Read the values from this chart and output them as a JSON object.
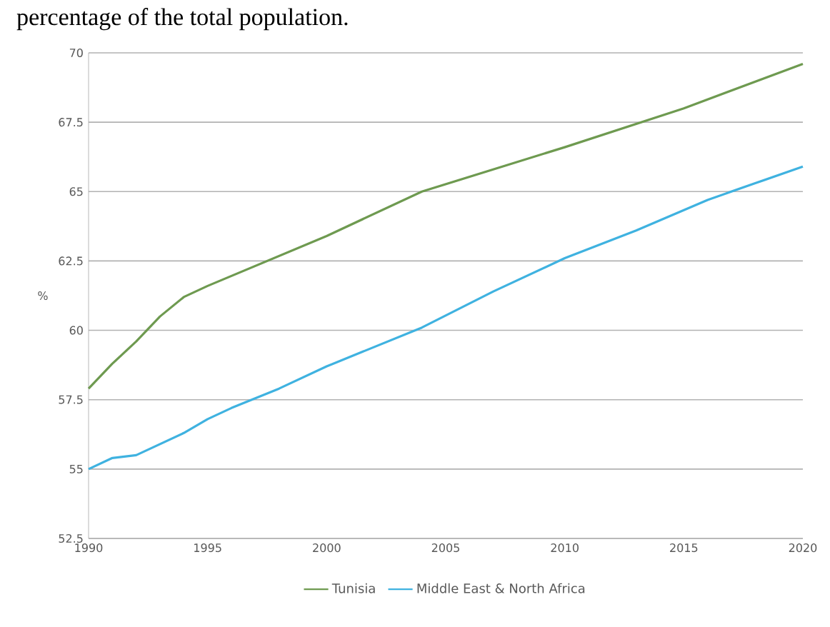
{
  "chart_data": {
    "type": "line",
    "title": "percentage of the total population.",
    "ylabel": "%",
    "xlim": [
      1990,
      2020
    ],
    "xticks": [
      1990,
      1995,
      2000,
      2005,
      2010,
      2015,
      2020
    ],
    "ylim": [
      52.5,
      70
    ],
    "yticks": [
      52.5,
      55,
      57.5,
      60,
      62.5,
      65,
      67.5,
      70
    ],
    "grid": "y",
    "legend": "bottom",
    "series": [
      {
        "name": "Tunisia",
        "color": "#6e9a50",
        "x": [
          1990,
          1991,
          1992,
          1993,
          1994,
          1995,
          2000,
          2004,
          2010,
          2015,
          2020
        ],
        "values": [
          57.9,
          58.8,
          59.6,
          60.5,
          61.2,
          61.6,
          63.4,
          65.0,
          66.6,
          68.0,
          69.6
        ]
      },
      {
        "name": "Middle East & North Africa",
        "color": "#3fb2e0",
        "x": [
          1990,
          1991,
          1992,
          1993,
          1994,
          1995,
          1996,
          1998,
          2000,
          2004,
          2007,
          2010,
          2013,
          2016,
          2018,
          2020
        ],
        "values": [
          55.0,
          55.4,
          55.5,
          55.9,
          56.3,
          56.8,
          57.2,
          57.9,
          58.7,
          60.1,
          61.4,
          62.6,
          63.6,
          64.7,
          65.3,
          65.9
        ]
      }
    ]
  }
}
